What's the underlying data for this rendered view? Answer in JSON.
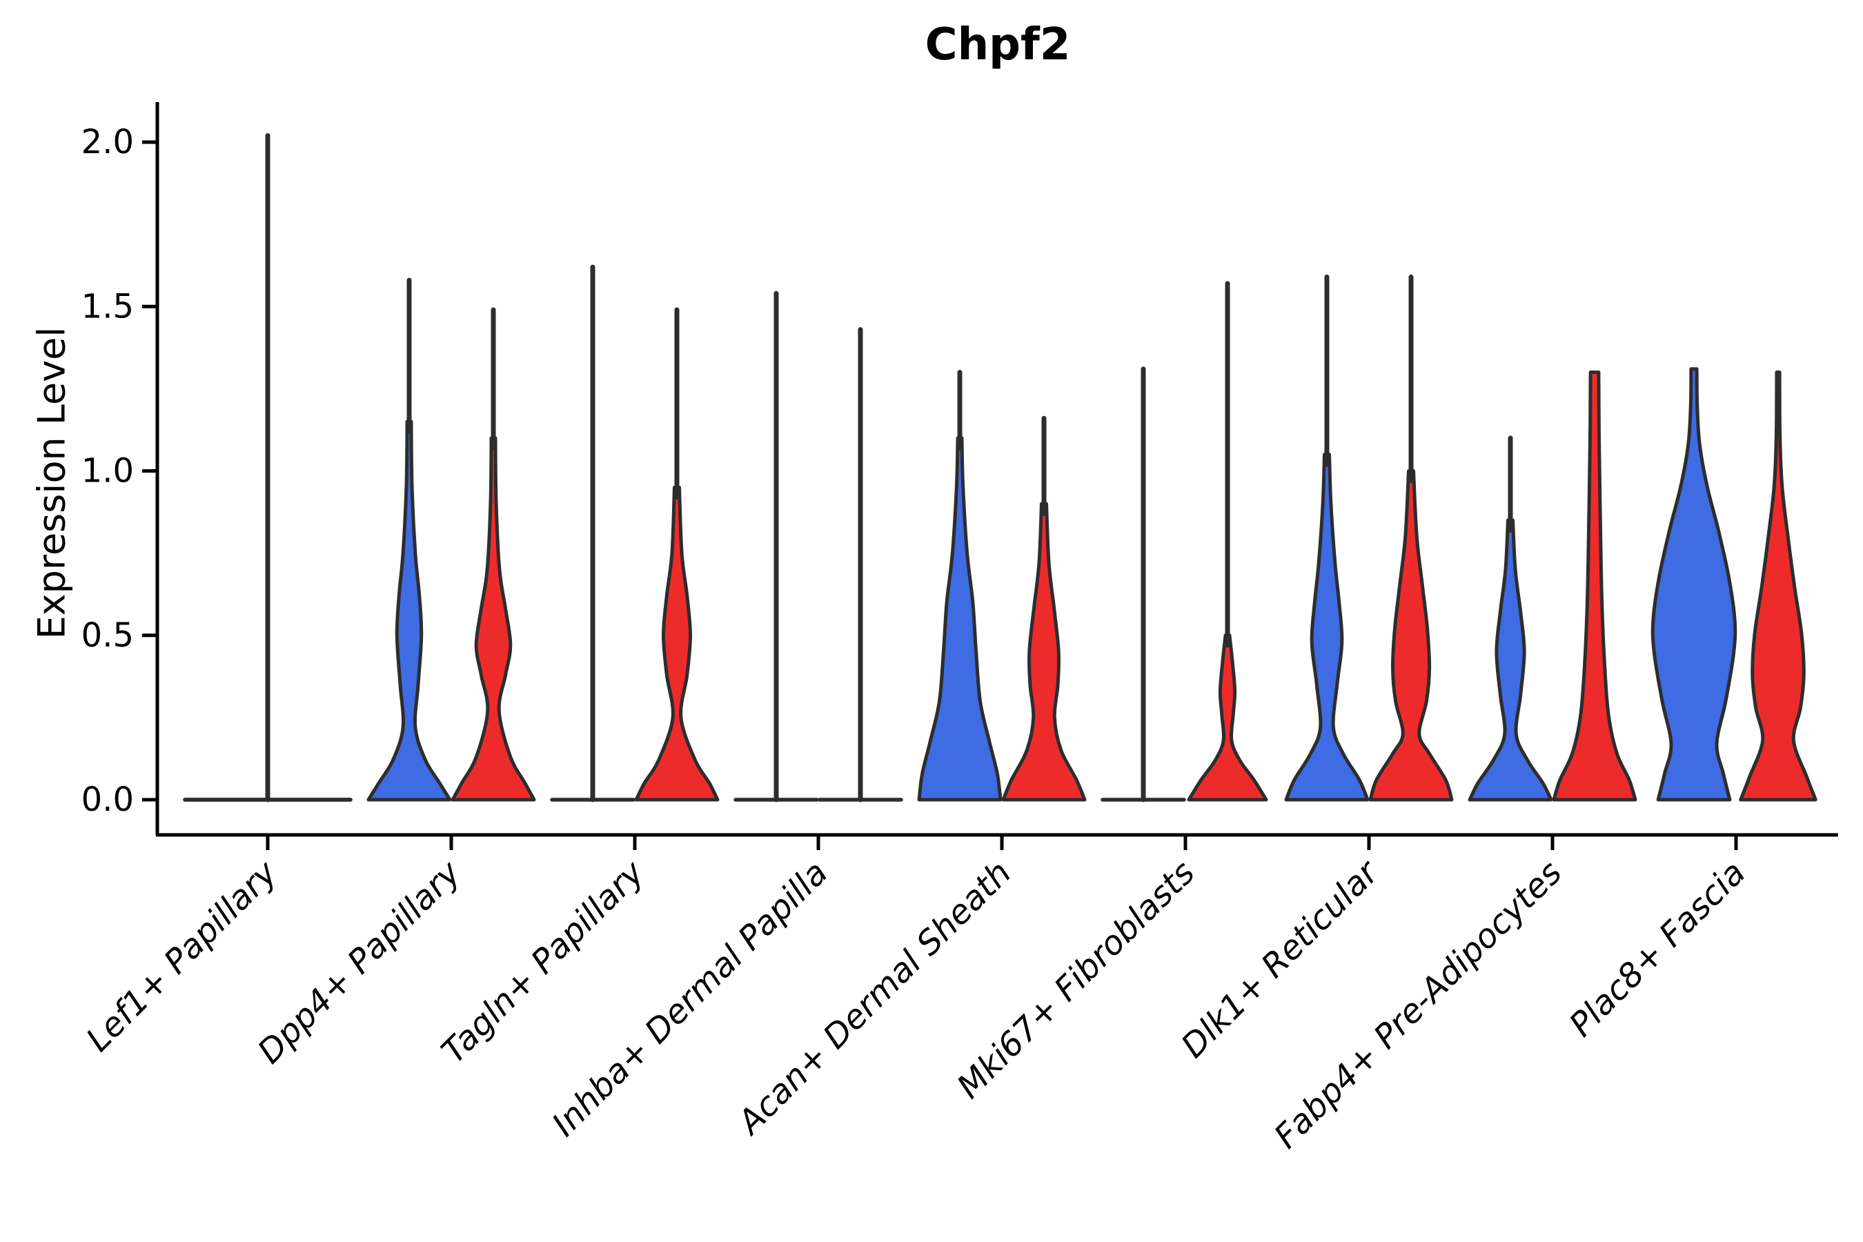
{
  "title": "Chpf2",
  "chart_data": {
    "type": "violin",
    "title": "Chpf2",
    "ylabel": "Expression Level",
    "xlabel": "",
    "ylim": [
      0,
      2.12
    ],
    "ytick_labels": [
      "0.0",
      "0.5",
      "1.0",
      "1.5",
      "2.0"
    ],
    "ytick_values": [
      0,
      0.5,
      1.0,
      1.5,
      2.0
    ],
    "grid": false,
    "legend_position": "none",
    "x_label_rotation_deg": 45,
    "x_label_style": "italic",
    "colors": {
      "blue": "#3F6BE3",
      "red": "#EE2B2B",
      "outline": "#2D2D2D",
      "axis": "#000000"
    },
    "categories": [
      "Lef1+ Papillary",
      "Dpp4+ Papillary",
      "Tagln+ Papillary",
      "Inhba+ Dermal Papilla",
      "Acan+ Dermal Sheath",
      "Mki67+ Fibroblasts",
      "Dlk1+ Reticular",
      "Fabp4+ Pre-Adipocytes",
      "Plac8+ Fascia"
    ],
    "violins": [
      {
        "category_index": 0,
        "group": "blue",
        "side": "center",
        "full_width": true,
        "max_value": 2.02,
        "spike": true,
        "blunt": false,
        "profile": [
          [
            0,
            1.0
          ]
        ]
      },
      {
        "category_index": 0,
        "group": "red",
        "side": "center",
        "full_width": true,
        "max_value": 0.0,
        "spike": false,
        "blunt": false,
        "profile": [
          [
            0,
            1.0
          ]
        ]
      },
      {
        "category_index": 1,
        "group": "blue",
        "side": "left",
        "max_value": 1.58,
        "spike": true,
        "blunt": false,
        "profile": [
          [
            0,
            1.0
          ],
          [
            0.05,
            0.75
          ],
          [
            0.12,
            0.4
          ],
          [
            0.22,
            0.15
          ],
          [
            0.35,
            0.22
          ],
          [
            0.5,
            0.3
          ],
          [
            0.62,
            0.25
          ],
          [
            0.75,
            0.15
          ],
          [
            0.95,
            0.07
          ],
          [
            1.15,
            0.05
          ]
        ]
      },
      {
        "category_index": 1,
        "group": "red",
        "side": "right",
        "max_value": 1.49,
        "spike": true,
        "blunt": false,
        "profile": [
          [
            0,
            1.0
          ],
          [
            0.05,
            0.78
          ],
          [
            0.13,
            0.42
          ],
          [
            0.27,
            0.14
          ],
          [
            0.38,
            0.3
          ],
          [
            0.47,
            0.42
          ],
          [
            0.58,
            0.3
          ],
          [
            0.7,
            0.15
          ],
          [
            0.9,
            0.07
          ],
          [
            1.1,
            0.05
          ]
        ]
      },
      {
        "category_index": 2,
        "group": "blue",
        "side": "left",
        "max_value": 1.62,
        "spike": true,
        "blunt": false,
        "profile": [
          [
            0,
            1.0
          ]
        ]
      },
      {
        "category_index": 2,
        "group": "red",
        "side": "right",
        "max_value": 1.49,
        "spike": true,
        "blunt": false,
        "profile": [
          [
            0,
            1.0
          ],
          [
            0.05,
            0.8
          ],
          [
            0.12,
            0.45
          ],
          [
            0.25,
            0.1
          ],
          [
            0.38,
            0.25
          ],
          [
            0.5,
            0.33
          ],
          [
            0.62,
            0.25
          ],
          [
            0.75,
            0.12
          ],
          [
            0.95,
            0.06
          ]
        ]
      },
      {
        "category_index": 3,
        "group": "blue",
        "side": "left",
        "max_value": 1.54,
        "spike": true,
        "blunt": false,
        "profile": [
          [
            0,
            1.0
          ]
        ]
      },
      {
        "category_index": 3,
        "group": "red",
        "side": "right",
        "max_value": 1.43,
        "spike": true,
        "blunt": false,
        "profile": [
          [
            0,
            1.0
          ]
        ]
      },
      {
        "category_index": 4,
        "group": "blue",
        "side": "left",
        "max_value": 1.3,
        "spike": true,
        "blunt": false,
        "profile": [
          [
            0,
            1.0
          ],
          [
            0.08,
            0.92
          ],
          [
            0.18,
            0.72
          ],
          [
            0.3,
            0.5
          ],
          [
            0.45,
            0.4
          ],
          [
            0.6,
            0.32
          ],
          [
            0.75,
            0.18
          ],
          [
            0.95,
            0.08
          ],
          [
            1.1,
            0.05
          ]
        ]
      },
      {
        "category_index": 4,
        "group": "red",
        "side": "right",
        "max_value": 1.16,
        "spike": true,
        "blunt": false,
        "profile": [
          [
            0,
            1.0
          ],
          [
            0.06,
            0.8
          ],
          [
            0.15,
            0.42
          ],
          [
            0.25,
            0.26
          ],
          [
            0.35,
            0.34
          ],
          [
            0.45,
            0.36
          ],
          [
            0.58,
            0.25
          ],
          [
            0.72,
            0.12
          ],
          [
            0.9,
            0.06
          ]
        ]
      },
      {
        "category_index": 5,
        "group": "blue",
        "side": "left",
        "max_value": 1.31,
        "spike": true,
        "blunt": false,
        "profile": [
          [
            0,
            1.0
          ]
        ]
      },
      {
        "category_index": 5,
        "group": "red",
        "side": "right",
        "max_value": 1.57,
        "spike": true,
        "blunt": false,
        "profile": [
          [
            0,
            0.95
          ],
          [
            0.06,
            0.65
          ],
          [
            0.12,
            0.3
          ],
          [
            0.18,
            0.1
          ],
          [
            0.26,
            0.14
          ],
          [
            0.33,
            0.18
          ],
          [
            0.42,
            0.12
          ],
          [
            0.5,
            0.05
          ]
        ]
      },
      {
        "category_index": 6,
        "group": "blue",
        "side": "left",
        "max_value": 1.59,
        "spike": true,
        "blunt": false,
        "profile": [
          [
            0,
            1.0
          ],
          [
            0.06,
            0.8
          ],
          [
            0.14,
            0.4
          ],
          [
            0.22,
            0.16
          ],
          [
            0.35,
            0.25
          ],
          [
            0.48,
            0.37
          ],
          [
            0.6,
            0.3
          ],
          [
            0.72,
            0.2
          ],
          [
            0.9,
            0.1
          ],
          [
            1.05,
            0.06
          ]
        ]
      },
      {
        "category_index": 6,
        "group": "red",
        "side": "right",
        "max_value": 1.59,
        "spike": true,
        "blunt": false,
        "profile": [
          [
            0,
            1.0
          ],
          [
            0.06,
            0.85
          ],
          [
            0.14,
            0.45
          ],
          [
            0.2,
            0.2
          ],
          [
            0.3,
            0.38
          ],
          [
            0.4,
            0.45
          ],
          [
            0.52,
            0.4
          ],
          [
            0.65,
            0.28
          ],
          [
            0.8,
            0.14
          ],
          [
            1.0,
            0.06
          ]
        ]
      },
      {
        "category_index": 7,
        "group": "blue",
        "side": "left",
        "max_value": 1.1,
        "spike": true,
        "blunt": false,
        "profile": [
          [
            0,
            1.0
          ],
          [
            0.05,
            0.8
          ],
          [
            0.12,
            0.42
          ],
          [
            0.2,
            0.14
          ],
          [
            0.32,
            0.25
          ],
          [
            0.45,
            0.34
          ],
          [
            0.57,
            0.25
          ],
          [
            0.7,
            0.12
          ],
          [
            0.85,
            0.06
          ]
        ]
      },
      {
        "category_index": 7,
        "group": "red",
        "side": "right",
        "max_value": 1.3,
        "spike": false,
        "blunt": true,
        "profile": [
          [
            0,
            1.0
          ],
          [
            0.06,
            0.85
          ],
          [
            0.14,
            0.55
          ],
          [
            0.25,
            0.35
          ],
          [
            0.4,
            0.25
          ],
          [
            0.6,
            0.18
          ],
          [
            0.85,
            0.14
          ],
          [
            1.1,
            0.11
          ],
          [
            1.3,
            0.1
          ]
        ]
      },
      {
        "category_index": 8,
        "group": "blue",
        "side": "left",
        "max_value": 1.31,
        "spike": false,
        "blunt": true,
        "profile": [
          [
            0,
            0.88
          ],
          [
            0.08,
            0.72
          ],
          [
            0.17,
            0.56
          ],
          [
            0.3,
            0.78
          ],
          [
            0.45,
            0.98
          ],
          [
            0.55,
            1.0
          ],
          [
            0.68,
            0.85
          ],
          [
            0.82,
            0.6
          ],
          [
            0.95,
            0.33
          ],
          [
            1.08,
            0.14
          ],
          [
            1.2,
            0.08
          ],
          [
            1.31,
            0.07
          ]
        ]
      },
      {
        "category_index": 8,
        "group": "red",
        "side": "right",
        "max_value": 1.3,
        "spike": false,
        "blunt": true,
        "profile": [
          [
            0,
            0.92
          ],
          [
            0.07,
            0.7
          ],
          [
            0.18,
            0.38
          ],
          [
            0.28,
            0.55
          ],
          [
            0.38,
            0.63
          ],
          [
            0.5,
            0.58
          ],
          [
            0.65,
            0.4
          ],
          [
            0.8,
            0.24
          ],
          [
            0.95,
            0.1
          ],
          [
            1.1,
            0.045
          ],
          [
            1.3,
            0.035
          ]
        ]
      }
    ]
  }
}
